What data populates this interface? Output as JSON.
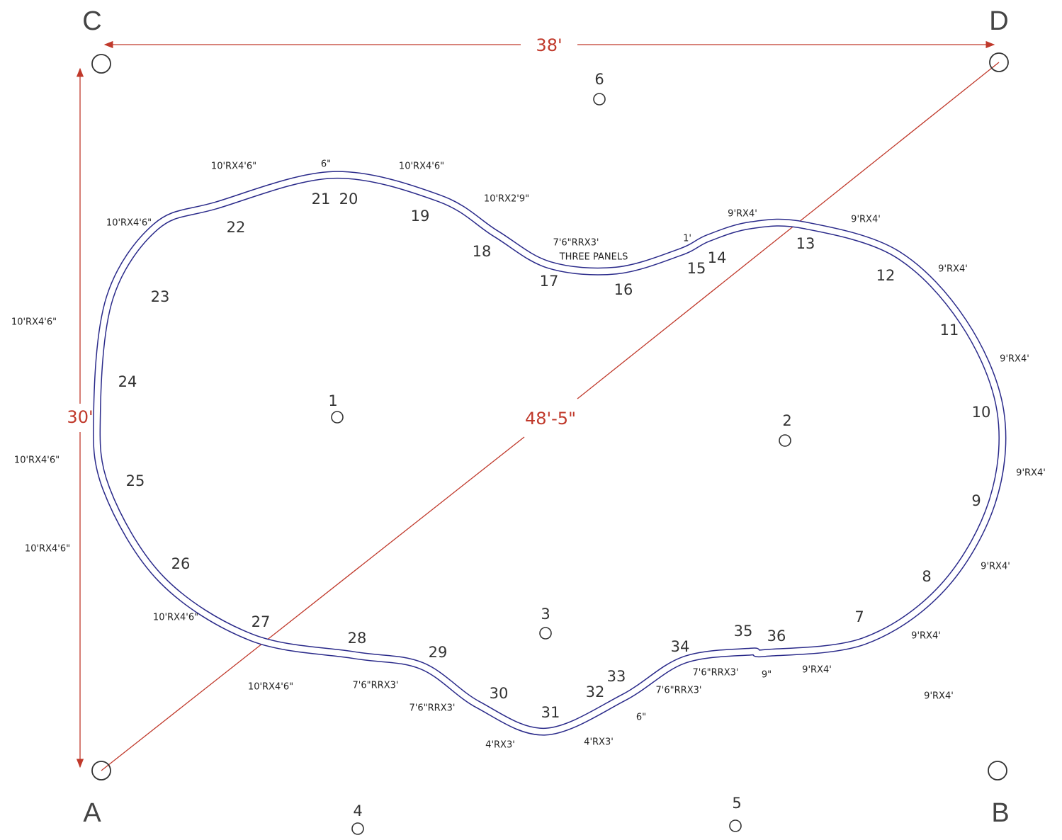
{
  "corners": [
    {
      "label": "A"
    },
    {
      "label": "B"
    },
    {
      "label": "C"
    },
    {
      "label": "D"
    }
  ],
  "dimensions": {
    "width": "38'",
    "depth": "30'",
    "diagonal": "48'-5\""
  },
  "posts": [
    "1",
    "2",
    "3",
    "4",
    "5",
    "6"
  ],
  "panels": [
    "7",
    "8",
    "9",
    "10",
    "11",
    "12",
    "13",
    "14",
    "15",
    "16",
    "17",
    "18",
    "19",
    "20",
    "21",
    "22",
    "23",
    "24",
    "25",
    "26",
    "27",
    "28",
    "29",
    "30",
    "31",
    "32",
    "33",
    "34",
    "35",
    "36"
  ],
  "segment_labels": [
    "10'RX4'6\"",
    "6\"",
    "10'RX4'6\"",
    "10'RX2'9\"",
    "10'RX4'6\"",
    "7'6\"RRX3'",
    "THREE PANELS",
    "1'",
    "9'RX4'",
    "9'RX4'",
    "9'RX4'",
    "10'RX4'6\"",
    "9'RX4'",
    "9'RX4'",
    "10'RX4'6\"",
    "10'RX4'6\"",
    "9'RX4'",
    "10'RX4'6\"",
    "9'RX4'",
    "7'6\"RRX3'",
    "9\"",
    "9'RX4'",
    "10'RX4'6\"",
    "7'6\"RRX3'",
    "7'6\"RRX3'",
    "9'RX4'",
    "7'6\"RRX3'",
    "6\"",
    "4'RX3'",
    "4'RX3'"
  ]
}
